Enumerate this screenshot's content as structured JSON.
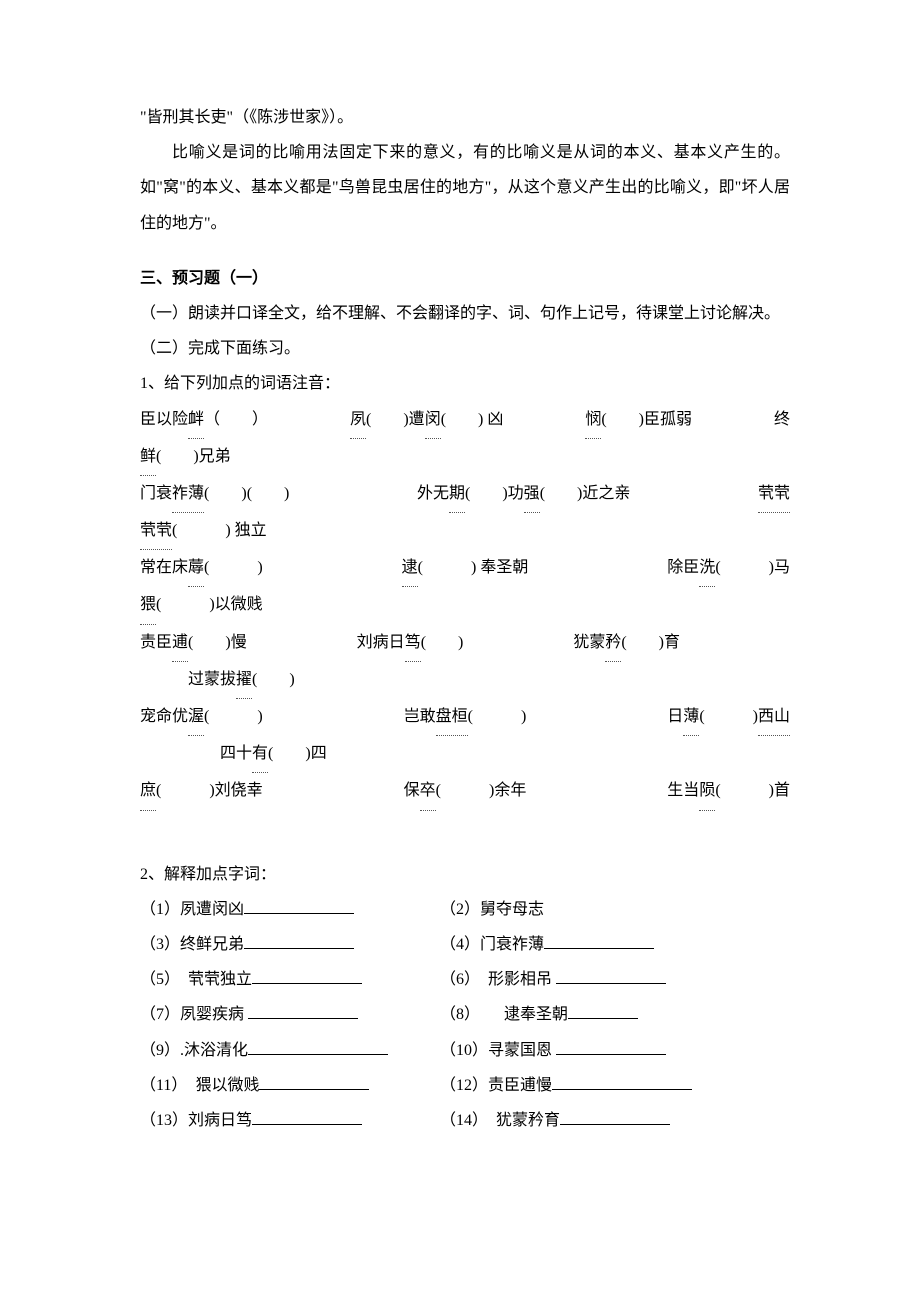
{
  "colors": {
    "text": "#000000",
    "background": "#ffffff",
    "dotted": "#555555",
    "underline": "#000000"
  },
  "typography": {
    "font_family": "SimSun",
    "font_size_pt": 12,
    "line_height": 2.2
  },
  "top": {
    "p1": "\"皆刑其长吏\"（《陈涉世家》）。",
    "p2": "比喻义是词的比喻用法固定下来的意义，有的比喻义是从词的本义、基本义产生的。如\"窝\"的本义、基本义都是\"鸟兽昆虫居住的地方\"，从这个意义产生出的比喻义，即\"坏人居住的地方\"。"
  },
  "section3": {
    "heading": "三、预习题（一）",
    "sub1": "（一）朗读并口译全文，给不理解、不会翻译的字、词、句作上记号，待课堂上讨论解决。",
    "sub2": "（二）完成下面练习。"
  },
  "q1": {
    "title": "1、给下列加点的词语注音：",
    "row1": {
      "a_pre": "臣以险",
      "a_dot": "衅",
      "b_dot": "夙",
      "b_mid1": "(　　)遭",
      "b_dot2": "闵",
      "b_mid2": "(　　) 凶",
      "c_dot": "悯",
      "c_post": "(　　)臣孤弱",
      "d_pre": "终",
      "d_dot": "鲜",
      "d_post": "(　　)兄弟"
    },
    "row2": {
      "a_pre": "门衰",
      "a_dot": "祚薄",
      "a_post": "(　　)(　　)",
      "b_pre": "外无",
      "b_dot": "期",
      "b_mid": "(　　)功",
      "b_dot2": "强",
      "b_post": "(　　)近之亲",
      "c_dot": "茕茕",
      "c_post": "(　　　) 独立"
    },
    "row3": {
      "a_pre": "常在床",
      "a_dot": "蓐",
      "a_post": "(　　　)",
      "b_dot": "逮",
      "b_post": "(　　　) 奉圣朝",
      "c_pre": "除臣",
      "c_dot": "洗",
      "c_post": "(　　　)马",
      "d_dot": "猥",
      "d_post": "(　　　)以微贱"
    },
    "row4": {
      "a_pre": "责臣",
      "a_dot": "逋",
      "a_post": "(　　)慢",
      "b_pre": "刘病日",
      "b_dot": "笃",
      "b_post": "(　　)",
      "c_pre": "犹蒙",
      "c_dot": "矜",
      "c_post": "(　　)育",
      "d_pre": "过蒙拔",
      "d_dot": "擢",
      "d_post": "(　　)"
    },
    "row5": {
      "a_pre": "宠命优",
      "a_dot": "渥",
      "a_post": "(　　　)",
      "b_pre": "岂敢",
      "b_dot": "盘桓",
      "b_post": "(　　　)",
      "c_pre": "日",
      "c_dot": "薄",
      "c_post": "(　　　)",
      "c_dot2": "西山",
      "d_pre": "四十",
      "d_dot": "有",
      "d_post": "(　　)四"
    },
    "row6": {
      "a_dot": "庶",
      "a_post": "(　　　)刘侥幸",
      "b_pre": "保",
      "b_dot": "卒",
      "b_post": "(　　　)余年",
      "c_pre": "生当",
      "c_dot": "陨",
      "c_post": "(　　　)首"
    }
  },
  "q2": {
    "title": "2、解释加点字词：",
    "rows": [
      {
        "l_no": "（1）",
        "l_txt": "夙遭闵凶",
        "l_blank": "blank-med",
        "r_no": "（2）",
        "r_txt": "舅夺母志",
        "r_blank": ""
      },
      {
        "l_no": "（3）",
        "l_txt": "终鲜兄弟",
        "l_blank": "blank-med",
        "r_no": "（4）",
        "r_txt": "门衰祚薄",
        "r_blank": "blank-med"
      },
      {
        "l_no": "（5）",
        "l_pre": "　",
        "l_txt": "茕茕独立",
        "l_blank": "blank-med",
        "r_no": "（6）",
        "r_pre": "　",
        "r_txt": "形影相吊 ",
        "r_blank": "blank-med"
      },
      {
        "l_no": "（7）",
        "l_txt": "夙婴疾病 ",
        "l_blank": "blank-med",
        "r_no": "（8）",
        "r_pre": "　　",
        "r_txt": "逮奉圣朝",
        "r_blank": "blank-short"
      },
      {
        "l_no": "（9）",
        "l_txt": ".沐浴清化",
        "l_blank": "blank-long",
        "r_no": "（10）",
        "r_txt": "寻蒙国恩 ",
        "r_blank": "blank-med"
      },
      {
        "l_no": "（11）",
        "l_pre": "　",
        "l_txt": "猥以微贱",
        "l_blank": "blank-med",
        "r_no": "（12）",
        "r_txt": "责臣逋慢",
        "r_blank": "blank-long"
      },
      {
        "l_no": "（13）",
        "l_txt": "刘病日笃",
        "l_blank": "blank-med",
        "r_no": "（14）",
        "r_pre": "　",
        "r_txt": "犹蒙矜育",
        "r_blank": "blank-med"
      }
    ]
  }
}
